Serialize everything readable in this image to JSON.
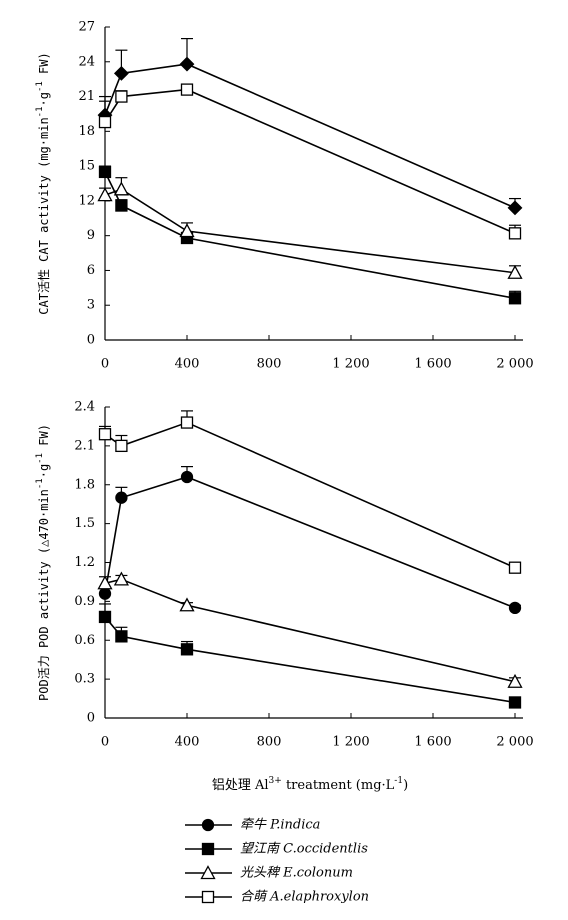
{
  "chart_data": [
    {
      "type": "line",
      "y_label_parts": [
        "CAT活性 CAT activity (mg·min",
        "-1",
        "·g",
        "-1",
        " FW)"
      ],
      "x": [
        0,
        80,
        400,
        2000
      ],
      "xlim": [
        0,
        2000
      ],
      "xticks": [
        0,
        400,
        800,
        {
          "value": 1200,
          "label": "1 200"
        },
        {
          "value": 1600,
          "label": "1 600"
        },
        {
          "value": 2000,
          "label": "2 000"
        }
      ],
      "ylim": [
        0,
        27
      ],
      "yticks": [
        0,
        3,
        6,
        9,
        12,
        15,
        18,
        21,
        24,
        27
      ],
      "series": [
        {
          "name": "牵牛 P.indica",
          "marker": "diamond",
          "fill": "#000000",
          "values": [
            19.4,
            23.0,
            23.8,
            11.4
          ],
          "errors": [
            1.2,
            2.0,
            2.2,
            0.8
          ]
        },
        {
          "name": "望江南 C.occidentlis",
          "marker": "square",
          "fill": "#000000",
          "values": [
            14.5,
            11.6,
            8.8,
            3.6
          ],
          "errors": [
            0.5,
            0.5,
            0.4,
            0.6
          ]
        },
        {
          "name": "光头稗 E.colonum",
          "marker": "triangle",
          "fill": "#ffffff",
          "values": [
            12.5,
            13.0,
            9.4,
            5.8
          ],
          "errors": [
            0.6,
            1.0,
            0.7,
            0.6
          ]
        },
        {
          "name": "合萌 A.elaphroxylon",
          "marker": "square",
          "fill": "#ffffff",
          "values": [
            18.8,
            21.0,
            21.6,
            9.2
          ],
          "errors": [
            2.2,
            0.5,
            0.3,
            0.7
          ]
        }
      ]
    },
    {
      "type": "line",
      "y_label_parts": [
        "POD活力 POD activity (△470·min",
        "-1",
        "·g",
        "-1",
        " FW)"
      ],
      "x_label_parts": [
        "铝处理 Al",
        "3+",
        " treatment (mg·L",
        "-1",
        ")"
      ],
      "x": [
        0,
        80,
        400,
        2000
      ],
      "xlim": [
        0,
        2000
      ],
      "xticks": [
        0,
        400,
        800,
        {
          "value": 1200,
          "label": "1 200"
        },
        {
          "value": 1600,
          "label": "1 600"
        },
        {
          "value": 2000,
          "label": "2 000"
        }
      ],
      "ylim": [
        0,
        2.4
      ],
      "yticks": [
        0,
        0.3,
        0.6,
        0.9,
        1.2,
        1.5,
        1.8,
        2.1,
        2.4
      ],
      "series": [
        {
          "name": "牵牛 P.indica",
          "marker": "circle",
          "fill": "#000000",
          "values": [
            0.96,
            1.7,
            1.86,
            0.85
          ],
          "errors": [
            0.04,
            0.08,
            0.08,
            0.02
          ]
        },
        {
          "name": "望江南 C.occidentlis",
          "marker": "square",
          "fill": "#000000",
          "values": [
            0.78,
            0.63,
            0.53,
            0.12
          ],
          "errors": [
            0.1,
            0.07,
            0.06,
            0.02
          ]
        },
        {
          "name": "光头稗 E.colonum",
          "marker": "triangle",
          "fill": "#ffffff",
          "values": [
            1.04,
            1.07,
            0.87,
            0.28
          ],
          "errors": [
            0.05,
            0.03,
            0.02,
            0.03
          ]
        },
        {
          "name": "合萌 A.elaphroxylon",
          "marker": "square",
          "fill": "#ffffff",
          "values": [
            2.19,
            2.1,
            2.28,
            1.16
          ],
          "errors": [
            0.06,
            0.08,
            0.09,
            0.03
          ]
        }
      ]
    }
  ]
}
